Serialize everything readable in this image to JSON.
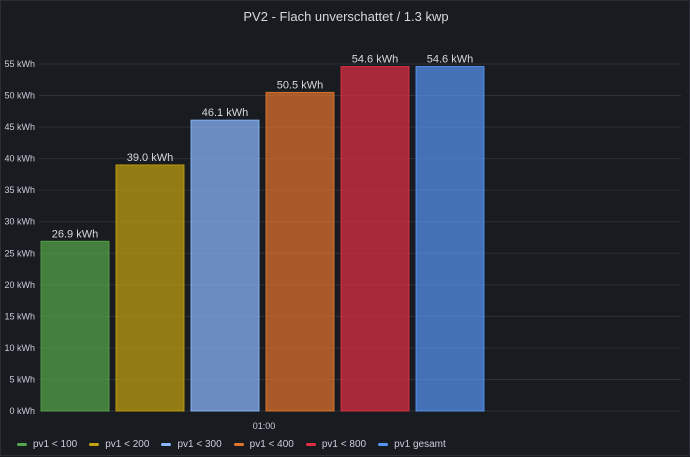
{
  "panel": {
    "title": "PV2 - Flach unverschattet / 1.3 kwp"
  },
  "chart_data": {
    "type": "bar",
    "categories": [
      "01:00"
    ],
    "unit": "kWh",
    "ylim": [
      0,
      55
    ],
    "yticks": [
      0,
      5,
      10,
      15,
      20,
      25,
      30,
      35,
      40,
      45,
      50,
      55
    ],
    "ytick_labels": [
      "0 kWh",
      "5 kWh",
      "10 kWh",
      "15 kWh",
      "20 kWh",
      "25 kWh",
      "30 kWh",
      "35 kWh",
      "40 kWh",
      "45 kWh",
      "50 kWh",
      "55 kWh"
    ],
    "xtick_label": "01:00",
    "grid": true,
    "legend_position": "bottom-left",
    "series": [
      {
        "name": "pv1 < 100",
        "value": 26.9,
        "label": "26.9 kWh",
        "color": "#56a64b"
      },
      {
        "name": "pv1 < 200",
        "value": 39.0,
        "label": "39.0 kWh",
        "color": "#c4a20f"
      },
      {
        "name": "pv1 < 300",
        "value": 46.1,
        "label": "46.1 kWh",
        "color": "#8ab8ff"
      },
      {
        "name": "pv1 < 400",
        "value": 50.5,
        "label": "50.5 kWh",
        "color": "#e0752d"
      },
      {
        "name": "pv1 < 800",
        "value": 54.6,
        "label": "54.6 kWh",
        "color": "#e02f44"
      },
      {
        "name": "pv1 gesamt",
        "value": 54.6,
        "label": "54.6 kWh",
        "color": "#5794f2"
      }
    ]
  }
}
